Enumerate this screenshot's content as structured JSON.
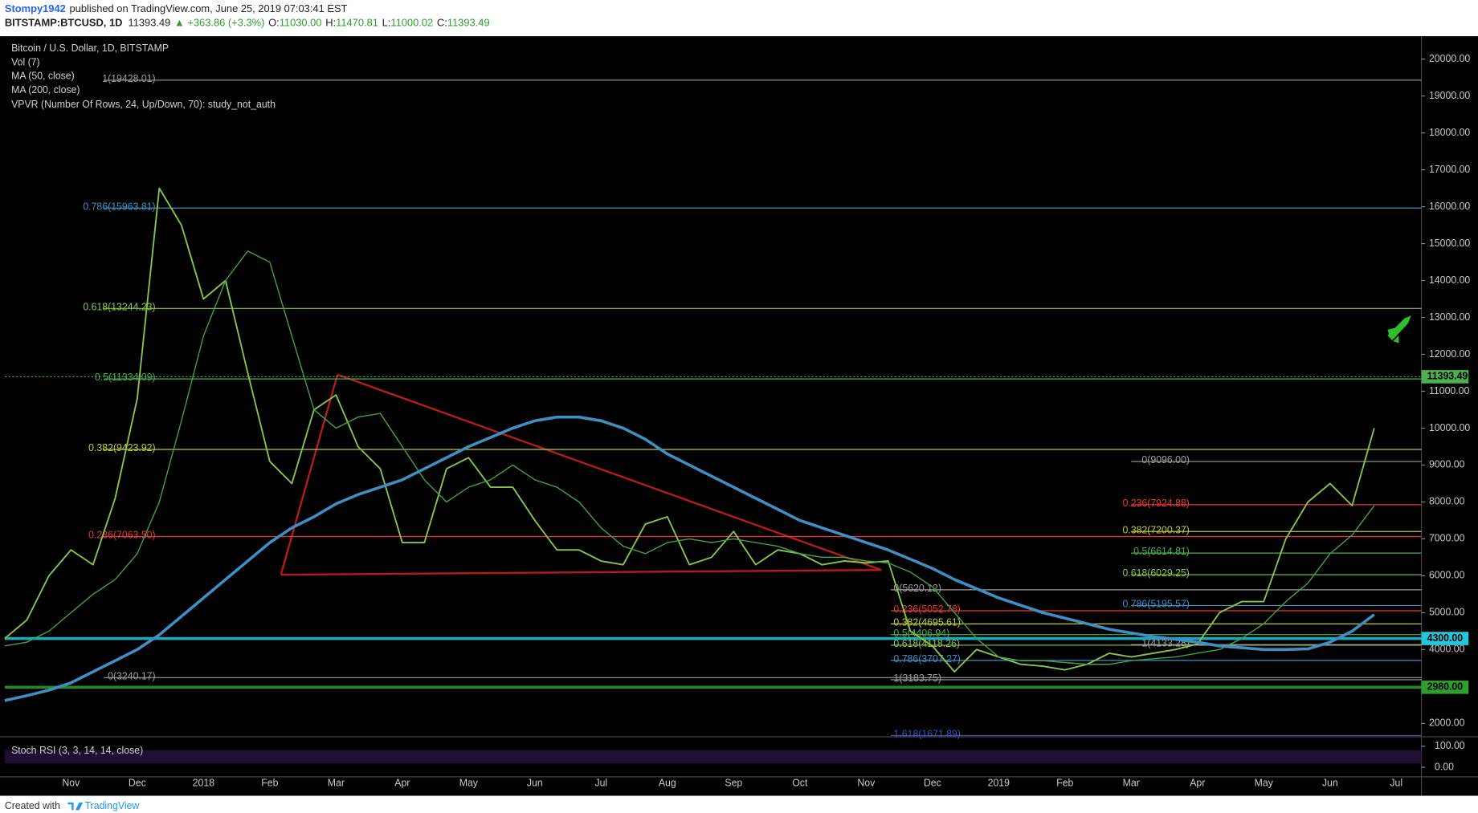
{
  "header": {
    "author": "Stompy1942",
    "published": "published on TradingView.com, June 25, 2019 07:03:41 EST",
    "symbol": "BITSTAMP:BTCUSD, 1D",
    "price": "11393.49",
    "change": "▲ +363.86 (+3.3%)",
    "o_label": "O:",
    "o": "11030.00",
    "h_label": "H:",
    "h": "11470.81",
    "l_label": "L:",
    "l": "11000.02",
    "c_label": "C:",
    "c": "11393.49"
  },
  "footer": {
    "text": "Created with",
    "brand": "TradingView"
  },
  "chart_data": {
    "type": "line",
    "studies": [
      "Vol (7)",
      "VPVR (Number Of Rows, 24, Up/Down, 70): study_not_auth"
    ],
    "categories": [
      null,
      null,
      null,
      "Nov",
      null,
      null,
      "Dec",
      null,
      null,
      "2018",
      null,
      null,
      "Feb",
      null,
      null,
      "Mar",
      null,
      null,
      "Apr",
      null,
      null,
      "May",
      null,
      null,
      "Jun",
      null,
      null,
      "Jul",
      null,
      null,
      "Aug",
      null,
      null,
      "Sep",
      null,
      null,
      "Oct",
      null,
      null,
      "Nov",
      null,
      null,
      "Dec",
      null,
      null,
      "2019",
      null,
      null,
      "Feb",
      null,
      null,
      "Mar",
      null,
      null,
      "Apr",
      null,
      null,
      "May",
      null,
      null,
      "Jun",
      null,
      null,
      "Jul"
    ],
    "series": [
      {
        "name": "Bitcoin / U.S. Dollar, 1D, BITSTAMP",
        "color": "#8bc34a",
        "values": [
          4300,
          4800,
          6000,
          6700,
          6300,
          8100,
          10800,
          16500,
          15500,
          13500,
          14000,
          11500,
          9100,
          8500,
          10500,
          10900,
          9500,
          8900,
          6900,
          6900,
          8900,
          9200,
          8400,
          8400,
          7500,
          6700,
          6700,
          6400,
          6300,
          7400,
          7600,
          6300,
          6500,
          7200,
          6300,
          6700,
          6600,
          6300,
          6400,
          6350,
          6400,
          4500,
          4100,
          3400,
          4000,
          3800,
          3600,
          3550,
          3450,
          3600,
          3900,
          3800,
          3900,
          4000,
          4150,
          5000,
          5300,
          5300,
          7000,
          8000,
          8500,
          7900,
          10000,
          null
        ]
      },
      {
        "name": "MA (50, close)",
        "color": "#43a047",
        "values": [
          4100,
          4200,
          4500,
          5000,
          5500,
          5900,
          6600,
          8000,
          10200,
          12500,
          14000,
          14800,
          14500,
          12500,
          10500,
          10000,
          10300,
          10400,
          9500,
          8600,
          8000,
          8400,
          8600,
          9000,
          8600,
          8400,
          8000,
          7300,
          6800,
          6600,
          6900,
          7000,
          6900,
          7000,
          6900,
          6800,
          6600,
          6500,
          6500,
          6400,
          6350,
          6100,
          5700,
          5000,
          4300,
          3800,
          3700,
          3700,
          3650,
          3600,
          3600,
          3700,
          3750,
          3800,
          3900,
          4000,
          4300,
          4700,
          5300,
          5800,
          6600,
          7100,
          7900,
          null
        ]
      },
      {
        "name": "MA (200, close)",
        "color": "#3f8fc4",
        "values": [
          2620,
          2750,
          2900,
          3100,
          3400,
          3700,
          4000,
          4400,
          4900,
          5400,
          5900,
          6400,
          6900,
          7300,
          7600,
          7950,
          8200,
          8400,
          8600,
          8900,
          9200,
          9500,
          9750,
          10000,
          10200,
          10300,
          10300,
          10200,
          10000,
          9700,
          9300,
          9000,
          8700,
          8400,
          8100,
          7800,
          7500,
          7300,
          7100,
          6900,
          6700,
          6450,
          6200,
          5900,
          5650,
          5400,
          5200,
          5000,
          4850,
          4700,
          4550,
          4450,
          4350,
          4280,
          4200,
          4100,
          4050,
          4000,
          4000,
          4020,
          4200,
          4500,
          4950,
          null
        ]
      }
    ],
    "ylim": [
      1664,
      20620
    ],
    "yticks": [
      {
        "value": 2000,
        "label": "2000.00"
      },
      {
        "value": 3000,
        "label": "3000.00"
      },
      {
        "value": 4000,
        "label": "4000.00"
      },
      {
        "value": 5000,
        "label": "5000.00"
      },
      {
        "value": 6000,
        "label": "6000.00"
      },
      {
        "value": 7000,
        "label": "7000.00"
      },
      {
        "value": 8000,
        "label": "8000.00"
      },
      {
        "value": 9000,
        "label": "9000.00"
      },
      {
        "value": 10000,
        "label": "10000.00"
      },
      {
        "value": 11000,
        "label": "11000.00"
      },
      {
        "value": 12000,
        "label": "12000.00"
      },
      {
        "value": 13000,
        "label": "13000.00"
      },
      {
        "value": 14000,
        "label": "14000.00"
      },
      {
        "value": 15000,
        "label": "15000.00"
      },
      {
        "value": 16000,
        "label": "16000.00"
      },
      {
        "value": 17000,
        "label": "17000.00"
      },
      {
        "value": 18000,
        "label": "18000.00"
      },
      {
        "value": 19000,
        "label": "19000.00"
      },
      {
        "value": 20000,
        "label": "20000.00"
      }
    ],
    "grid": false,
    "price_levels": [
      {
        "value": 11393.49,
        "label": "11393.49",
        "color": "#4caf50"
      },
      {
        "value": 4300,
        "label": "4300.00",
        "color": "#26c6da"
      },
      {
        "value": 2980,
        "label": "2980.00",
        "color": "#2e9e2e"
      }
    ],
    "fib_sets": [
      {
        "levels": [
          {
            "label": "1(19428.01)",
            "value": 19428.01,
            "color": "#9e9e9e"
          },
          {
            "label": "0.786(15963.81)",
            "value": 15963.81,
            "color": "#3f8fc4"
          },
          {
            "label": "0.618(13244.23)",
            "value": 13244.23,
            "color": "#8bc34a"
          },
          {
            "label": "0.5(11334.09)",
            "value": 11334.09,
            "color": "#4caf50"
          },
          {
            "label": "0.382(9423.92)",
            "value": 9423.92,
            "color": "#c0ca33"
          },
          {
            "label": "0.236(7063.50)",
            "value": 7063.5,
            "color": "#e53935"
          },
          {
            "label": "0(3240.17)",
            "value": 3240.17,
            "color": "#9e9e9e"
          }
        ]
      },
      {
        "levels": [
          {
            "label": "0(5620.12)",
            "value": 5620.12,
            "color": "#9e9e9e"
          },
          {
            "label": "0.236(5052.78)",
            "value": 5052.78,
            "color": "#e53935"
          },
          {
            "label": "0.382(4695.61)",
            "value": 4695.61,
            "color": "#c0ca33"
          },
          {
            "label": "0.5(4406.94)",
            "value": 4406.94,
            "color": "#4caf50"
          },
          {
            "label": "0.618(4118.26)",
            "value": 4118.26,
            "color": "#8bc34a"
          },
          {
            "label": "0.786(3707.27)",
            "value": 3707.27,
            "color": "#3f8fc4"
          },
          {
            "label": "1(3183.75)",
            "value": 3183.75,
            "color": "#9e9e9e"
          },
          {
            "label": "1.618(1671.89)",
            "value": 1671.89,
            "color": "#3f51b5"
          }
        ]
      },
      {
        "levels": [
          {
            "label": "0(9096.00)",
            "value": 9096,
            "color": "#9e9e9e"
          },
          {
            "label": "0.236(7924.88)",
            "value": 7924.88,
            "color": "#e53935"
          },
          {
            "label": "0.382(7200.37)",
            "value": 7200.37,
            "color": "#c0ca33"
          },
          {
            "label": "0.5(6614.81)",
            "value": 6614.81,
            "color": "#4caf50"
          },
          {
            "label": "0.618(6029.25)",
            "value": 6029.25,
            "color": "#8bc34a"
          },
          {
            "label": "0.786(5195.57)",
            "value": 5195.57,
            "color": "#3f8fc4"
          },
          {
            "label": "1(4133.28)",
            "value": 4133.28,
            "color": "#9e9e9e"
          }
        ]
      }
    ],
    "rsi": {
      "title": "Stoch RSI (3, 3, 14, 14, close)",
      "ylim": [
        -45,
        136
      ],
      "yticks": [
        {
          "value": 100,
          "label": "100.00"
        },
        {
          "value": 0,
          "label": "0.00"
        }
      ]
    }
  }
}
